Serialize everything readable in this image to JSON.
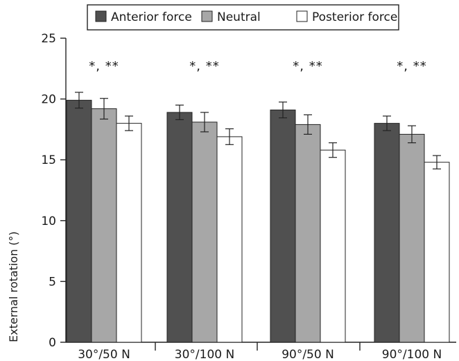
{
  "chart_data": {
    "type": "bar",
    "title": "",
    "xlabel": "",
    "ylabel": "External rotation (°)",
    "ylim": [
      0,
      25
    ],
    "yticks": [
      0,
      5,
      10,
      15,
      20,
      25
    ],
    "legend_position": "top",
    "categories": [
      "30°/50 N",
      "30°/100 N",
      "90°/50 N",
      "90°/100 N"
    ],
    "series": [
      {
        "name": "Anterior force",
        "color": "#505050",
        "values": [
          19.9,
          18.9,
          19.1,
          18.0
        ],
        "errors": [
          0.65,
          0.6,
          0.65,
          0.6
        ]
      },
      {
        "name": "Neutral",
        "color": "#a7a7a7",
        "values": [
          19.2,
          18.1,
          17.9,
          17.1
        ],
        "errors": [
          0.85,
          0.8,
          0.8,
          0.7
        ]
      },
      {
        "name": "Posterior force",
        "color": "#ffffff",
        "values": [
          18.0,
          16.9,
          15.8,
          14.8
        ],
        "errors": [
          0.6,
          0.65,
          0.6,
          0.55
        ]
      }
    ],
    "annotations": [
      "*, **",
      "*, **",
      "*, **",
      "*, **"
    ]
  }
}
